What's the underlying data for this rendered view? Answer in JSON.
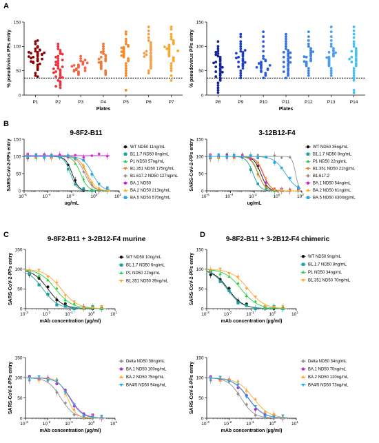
{
  "chart_data": [
    {
      "id": "A-left",
      "panel_label": "A",
      "type": "scatter",
      "xlabel": "Plates",
      "ylabel": "% pseudovirus PPs entry",
      "ylim": [
        0,
        150
      ],
      "yticks": [
        0,
        50,
        100,
        150
      ],
      "threshold": 35,
      "categories": [
        "P1",
        "P2",
        "P3",
        "P4",
        "P5",
        "P6",
        "P7"
      ],
      "colors": [
        "#8b0000",
        "#e8323c",
        "#f06448",
        "#f07a32",
        "#f68b2a",
        "#f5a04a",
        "#f8a830"
      ],
      "values": [
        [
          95,
          90,
          88,
          85,
          82,
          80,
          78,
          92,
          86,
          75,
          72,
          70,
          68,
          98,
          84,
          76,
          66,
          62,
          58,
          55,
          52,
          45,
          40,
          38,
          100,
          105,
          110,
          112,
          88,
          83,
          79,
          74,
          69,
          64,
          93,
          87
        ],
        [
          105,
          100,
          95,
          92,
          88,
          85,
          80,
          75,
          70,
          65,
          60,
          55,
          52,
          50,
          48,
          45,
          42,
          40,
          38,
          35,
          30,
          28,
          25,
          22,
          20,
          18,
          15,
          62,
          58,
          68,
          72,
          78,
          84,
          46,
          54,
          36
        ],
        [
          80,
          75,
          70,
          68,
          65,
          63,
          62,
          60,
          58,
          57,
          56,
          55,
          54,
          53,
          52,
          50,
          48,
          46,
          44,
          42,
          66,
          61,
          59,
          51,
          49,
          72
        ],
        [
          105,
          100,
          95,
          90,
          85,
          82,
          80,
          78,
          75,
          72,
          70,
          68,
          66,
          64,
          62,
          60,
          58,
          56,
          54,
          50,
          48,
          45,
          42,
          88,
          74,
          67
        ],
        [
          130,
          125,
          115,
          110,
          105,
          102,
          100,
          98,
          96,
          94,
          92,
          90,
          88,
          86,
          84,
          82,
          80,
          78,
          75,
          72,
          70,
          65,
          60,
          55,
          50,
          45,
          40,
          10,
          97,
          89,
          81
        ],
        [
          140,
          132,
          125,
          118,
          112,
          108,
          104,
          100,
          97,
          94,
          92,
          90,
          87,
          85,
          83,
          80,
          78,
          75,
          72,
          70,
          66,
          62,
          58,
          55,
          50,
          45,
          86,
          79
        ],
        [
          140,
          135,
          125,
          120,
          115,
          112,
          110,
          107,
          105,
          103,
          101,
          100,
          98,
          96,
          94,
          92,
          90,
          88,
          86,
          84,
          82,
          80,
          77,
          74,
          70,
          65,
          60,
          55,
          50,
          40,
          30,
          95,
          99,
          91
        ]
      ]
    },
    {
      "id": "A-right",
      "type": "scatter",
      "xlabel": "Plates",
      "ylabel": "% pseudovirus PPs entry",
      "ylim": [
        0,
        150
      ],
      "yticks": [
        0,
        50,
        100,
        150
      ],
      "threshold": 35,
      "categories": [
        "P8",
        "P9",
        "P10",
        "P11",
        "P12",
        "P13",
        "P14"
      ],
      "colors": [
        "#12248f",
        "#1e3fbf",
        "#2a5ad8",
        "#3572e0",
        "#3e86e8",
        "#48a0ee",
        "#43c0f0"
      ],
      "values": [
        [
          110,
          100,
          95,
          90,
          85,
          80,
          78,
          75,
          72,
          70,
          68,
          65,
          62,
          60,
          58,
          55,
          52,
          50,
          48,
          45,
          42,
          40,
          38,
          35,
          32,
          30,
          25,
          20,
          15,
          10,
          5,
          88,
          83,
          66,
          57,
          47
        ],
        [
          125,
          120,
          110,
          105,
          100,
          95,
          90,
          88,
          85,
          82,
          80,
          78,
          75,
          72,
          70,
          68,
          65,
          62,
          60,
          58,
          55,
          50,
          45,
          40,
          35,
          92,
          86,
          76,
          67
        ],
        [
          130,
          120,
          110,
          100,
          90,
          80,
          75,
          72,
          70,
          68,
          66,
          64,
          62,
          60,
          58,
          56,
          55,
          54,
          52,
          50,
          48,
          45,
          42,
          40,
          35,
          65,
          61,
          57
        ],
        [
          125,
          120,
          115,
          110,
          105,
          100,
          95,
          92,
          90,
          88,
          85,
          82,
          80,
          78,
          75,
          72,
          70,
          68,
          65,
          62,
          60,
          58,
          55,
          52,
          50,
          48,
          45,
          42,
          40,
          35,
          87,
          77,
          67
        ],
        [
          130,
          120,
          112,
          105,
          100,
          96,
          92,
          88,
          85,
          82,
          80,
          78,
          75,
          72,
          70,
          68,
          66,
          64,
          62,
          60,
          55,
          50,
          45,
          40,
          89,
          79,
          69
        ],
        [
          140,
          130,
          120,
          112,
          105,
          100,
          96,
          92,
          90,
          88,
          85,
          82,
          80,
          78,
          76,
          74,
          72,
          70,
          68,
          66,
          64,
          62,
          60,
          55,
          50,
          45,
          40,
          87,
          77
        ],
        [
          140,
          132,
          125,
          118,
          110,
          105,
          100,
          96,
          92,
          88,
          85,
          82,
          80,
          78,
          75,
          72,
          70,
          68,
          65,
          62,
          60,
          55,
          50,
          45,
          40,
          35,
          30,
          10,
          5,
          90,
          74
        ]
      ]
    },
    {
      "id": "B-left",
      "panel_label": "B",
      "type": "line",
      "title": "9-8F2-B11",
      "xlabel": "ug/mL",
      "ylabel": "SARS-CoV-2-PPs entry",
      "xscale": "log",
      "xlim_exp": [
        -6,
        2
      ],
      "xticks_exp": [
        -6,
        -4,
        -2,
        0,
        2
      ],
      "ylim": [
        0,
        150
      ],
      "yticks": [
        0,
        50,
        100,
        150
      ],
      "x": [
        2e-06,
        1e-05,
        5e-05,
        0.0002,
        0.001,
        0.005,
        0.02,
        0.1,
        0.5,
        2,
        10
      ],
      "series": [
        {
          "name": "WT ND50 11ng/mL",
          "ic50": 0.011,
          "hill": 1.6,
          "color": "#111111",
          "marker": "circle"
        },
        {
          "name": "B1.1.7 ND50 8ng/mL",
          "ic50": 0.008,
          "hill": 1.6,
          "color": "#1f9e9e",
          "marker": "square"
        },
        {
          "name": "P1 ND50 57ng/mL",
          "ic50": 0.057,
          "hill": 1.4,
          "color": "#2ecc40",
          "marker": "triangle"
        },
        {
          "name": "B1.351 ND50 175ng/mL",
          "ic50": 0.175,
          "hill": 1.4,
          "color": "#e67e22",
          "marker": "tri-down"
        },
        {
          "name": "B1.617.2 ND50 127ng/mL",
          "ic50": 0.127,
          "hill": 1.3,
          "color": "#909090",
          "marker": "diamond"
        },
        {
          "name": "BA.1 ND50",
          "ic50": null,
          "hill": 1,
          "color": "#d020d0",
          "marker": "circle"
        },
        {
          "name": "BA.2 ND50 213ng/mL",
          "ic50": 0.213,
          "hill": 1.2,
          "color": "#ffb020",
          "marker": "triangle"
        },
        {
          "name": "BA.5 ND50 570ng/mL",
          "ic50": 0.57,
          "hill": 1.1,
          "color": "#29a8e0",
          "marker": "square"
        }
      ]
    },
    {
      "id": "B-right",
      "type": "line",
      "title": "3-12B12-F4",
      "xlabel": "ug/mL",
      "ylabel": "SARS-CoV-2-PPs entry",
      "xscale": "log",
      "xlim_exp": [
        -6,
        2
      ],
      "xticks_exp": [
        -6,
        -4,
        -2,
        0,
        2
      ],
      "ylim": [
        0,
        150
      ],
      "yticks": [
        0,
        50,
        100,
        150
      ],
      "x": [
        2e-06,
        1e-05,
        5e-05,
        0.0002,
        0.001,
        0.005,
        0.02,
        0.1,
        0.5,
        2,
        10,
        50
      ],
      "series": [
        {
          "name": "WT ND50 35ng/mL",
          "ic50": 0.035,
          "hill": 1.5,
          "color": "#111111",
          "marker": "circle"
        },
        {
          "name": "B1.1.7 ND50 8ng/mL",
          "ic50": 0.008,
          "hill": 1.5,
          "color": "#1f9e9e",
          "marker": "square"
        },
        {
          "name": "P1 ND50 22ng/mL",
          "ic50": 0.022,
          "hill": 1.5,
          "color": "#2ecc40",
          "marker": "triangle"
        },
        {
          "name": "B1.351 ND50 21ng/mL",
          "ic50": 0.021,
          "hill": 1.4,
          "color": "#e67e22",
          "marker": "tri-down"
        },
        {
          "name": "B1.617.2",
          "ic50": 30,
          "hill": 3,
          "color": "#909090",
          "marker": "diamond"
        },
        {
          "name": "BA.1 ND50 54ng/mL",
          "ic50": 0.054,
          "hill": 1.4,
          "color": "#d020d0",
          "marker": "circle"
        },
        {
          "name": "BA.2 ND50 61ng/mL",
          "ic50": 0.061,
          "hill": 1.4,
          "color": "#ffb020",
          "marker": "triangle"
        },
        {
          "name": "BA.5 ND50 4304ng/mL",
          "ic50": 4.3,
          "hill": 0.9,
          "color": "#29a8e0",
          "marker": "square"
        }
      ]
    },
    {
      "id": "C-top",
      "panel_label": "C",
      "type": "line",
      "title": "9-8F2-B11 + 3-2B12-F4 murine",
      "xlabel": "mAb concentration (µg/ml)",
      "ylabel": "SARS-CoV-2-PPs entry",
      "xscale": "log",
      "xlim_exp": [
        -3,
        1
      ],
      "xticks_exp": [
        -3,
        -2,
        -1,
        0,
        1
      ],
      "ylim": [
        0,
        150
      ],
      "yticks": [
        0,
        50,
        100,
        150
      ],
      "x": [
        0.0015,
        0.004,
        0.01,
        0.025,
        0.06,
        0.15,
        0.4,
        1,
        2.5
      ],
      "series": [
        {
          "name": "WT ND50 10ng/mL",
          "ic50": 0.01,
          "hill": 1.3,
          "color": "#111111",
          "marker": "circle"
        },
        {
          "name": "B1.1.7 ND50 6ng/mL",
          "ic50": 0.006,
          "hill": 1.3,
          "color": "#1f9e9e",
          "marker": "square"
        },
        {
          "name": "P1 ND50 22ng/mL",
          "ic50": 0.022,
          "hill": 1.2,
          "color": "#2ecc40",
          "marker": "triangle"
        },
        {
          "name": "B1.351 ND50 39ng/mL",
          "ic50": 0.039,
          "hill": 1.2,
          "color": "#ffa530",
          "marker": "tri-down"
        }
      ]
    },
    {
      "id": "C-bottom",
      "type": "line",
      "xlabel": "mAb concentration (µg/ml)",
      "ylabel": "SARS-CoV-2-PPs entry",
      "xscale": "log",
      "xlim_exp": [
        -3,
        1
      ],
      "xticks_exp": [
        -3,
        -2,
        -1,
        0,
        1
      ],
      "ylim": [
        0,
        150
      ],
      "yticks": [
        0,
        50,
        100,
        150
      ],
      "x": [
        0.0015,
        0.004,
        0.01,
        0.025,
        0.06,
        0.15,
        0.4,
        1,
        2.5
      ],
      "series": [
        {
          "name": "Delta ND50 38ng/mL",
          "ic50": 0.038,
          "hill": 1.5,
          "color": "#909090",
          "marker": "diamond"
        },
        {
          "name": "BA.1 ND50 100ng/mL",
          "ic50": 0.1,
          "hill": 1.5,
          "color": "#b030c8",
          "marker": "circle"
        },
        {
          "name": "BA.2 ND50 75ng/mL",
          "ic50": 0.075,
          "hill": 2.2,
          "color": "#ffa530",
          "marker": "triangle"
        },
        {
          "name": "BA4/5 ND50 94ng/mL",
          "ic50": 0.094,
          "hill": 1.6,
          "color": "#29a8e0",
          "marker": "tri-down"
        }
      ]
    },
    {
      "id": "D-top",
      "panel_label": "D",
      "type": "line",
      "title": "9-8F2-B11 + 3-2B12-F4 chimeric",
      "xlabel": "mAb concentration (µg/ml)",
      "ylabel": "SARS-CoV-2-PPs entry",
      "xscale": "log",
      "xlim_exp": [
        -3,
        1
      ],
      "xticks_exp": [
        -3,
        -2,
        -1,
        0,
        1
      ],
      "ylim": [
        0,
        150
      ],
      "yticks": [
        0,
        50,
        100,
        150
      ],
      "x": [
        0.0015,
        0.004,
        0.01,
        0.025,
        0.06,
        0.15,
        0.4,
        1,
        2.5
      ],
      "series": [
        {
          "name": "WT ND50 9ng/mL",
          "ic50": 0.009,
          "hill": 1.3,
          "color": "#111111",
          "marker": "circle"
        },
        {
          "name": "B1.1.7 ND50 8ng/mL",
          "ic50": 0.008,
          "hill": 1.3,
          "color": "#1f9e9e",
          "marker": "square"
        },
        {
          "name": "P1 ND50 34ng/mL",
          "ic50": 0.034,
          "hill": 1.2,
          "color": "#2ecc40",
          "marker": "triangle"
        },
        {
          "name": "B1.351 ND50 70ng/mL",
          "ic50": 0.07,
          "hill": 1.2,
          "color": "#ffa530",
          "marker": "tri-down"
        }
      ]
    },
    {
      "id": "D-bottom",
      "type": "line",
      "xlabel": "mAb concentration (µg/ml)",
      "ylabel": "SARS-CoV-2-PPs entry",
      "xscale": "log",
      "xlim_exp": [
        -3,
        1
      ],
      "xticks_exp": [
        -3,
        -2,
        -1,
        0,
        1
      ],
      "ylim": [
        0,
        150
      ],
      "yticks": [
        0,
        50,
        100,
        150
      ],
      "x": [
        0.0015,
        0.004,
        0.01,
        0.025,
        0.06,
        0.15,
        0.4,
        1,
        2.5
      ],
      "series": [
        {
          "name": "Delta ND50 34ng/mL",
          "ic50": 0.034,
          "hill": 1.5,
          "color": "#909090",
          "marker": "diamond"
        },
        {
          "name": "BA.1 ND50 70ng/mL",
          "ic50": 0.07,
          "hill": 1.3,
          "color": "#b030c8",
          "marker": "circle"
        },
        {
          "name": "BA.2 ND50 120ng/mL",
          "ic50": 0.12,
          "hill": 1.2,
          "color": "#ffa530",
          "marker": "triangle"
        },
        {
          "name": "BA4/5 ND50 73ng/mL",
          "ic50": 0.073,
          "hill": 1.3,
          "color": "#29a8e0",
          "marker": "tri-down"
        }
      ]
    }
  ]
}
